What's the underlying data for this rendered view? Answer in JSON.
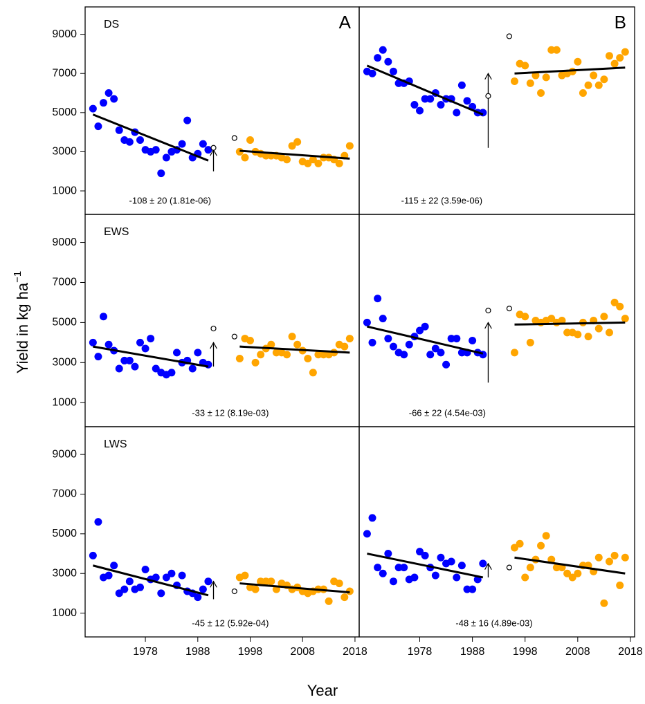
{
  "x_label": "Year",
  "y_label": "Yield in kg ha",
  "y_label_superscript": "−1",
  "chart_data": [
    {
      "type": "scatter",
      "title": "DS",
      "panel_label": "A",
      "annotation": "-108 ± 20 (1.81e-06)",
      "xlim": [
        1966.5,
        2018.8
      ],
      "ylim": [
        -200,
        10400
      ],
      "yticks": [
        1000,
        3000,
        5000,
        7000,
        9000
      ],
      "series": [
        {
          "color": "#0000ff",
          "x": [
            1968,
            1969,
            1970,
            1971,
            1972,
            1973,
            1974,
            1975,
            1976,
            1977,
            1978,
            1979,
            1980,
            1981,
            1982,
            1983,
            1984,
            1985,
            1986,
            1987,
            1988,
            1989,
            1990
          ],
          "values": [
            5200,
            4300,
            5500,
            6000,
            5700,
            4100,
            3600,
            3500,
            4000,
            3600,
            3100,
            3000,
            3100,
            1900,
            2700,
            3000,
            3100,
            3400,
            4600,
            2700,
            2900,
            3400,
            3100
          ]
        },
        {
          "color": "#ffa500",
          "x": [
            1996,
            1997,
            1998,
            1999,
            2000,
            2001,
            2002,
            2003,
            2004,
            2005,
            2006,
            2007,
            2008,
            2009,
            2010,
            2011,
            2012,
            2013,
            2014,
            2015,
            2016,
            2017
          ],
          "values": [
            3000,
            2700,
            3600,
            3000,
            2900,
            2800,
            2800,
            2800,
            2700,
            2600,
            3300,
            3500,
            2500,
            2400,
            2600,
            2400,
            2700,
            2700,
            2600,
            2400,
            2800,
            3300
          ]
        }
      ],
      "trend_lines": [
        {
          "x": [
            1968,
            1990
          ],
          "values": [
            4900,
            2550
          ]
        },
        {
          "x": [
            1996,
            2017
          ],
          "values": [
            3050,
            2650
          ]
        }
      ],
      "arrow": {
        "x": 1991,
        "values": [
          2000,
          3100
        ]
      },
      "open_points": {
        "x": [
          1991,
          1995
        ],
        "values": [
          3200,
          3700
        ]
      }
    },
    {
      "type": "scatter",
      "panel_label": "B",
      "annotation": "-115 ± 22 (3.59e-06)",
      "xlim": [
        1966.5,
        2018.8
      ],
      "ylim": [
        -200,
        10400
      ],
      "series": [
        {
          "color": "#0000ff",
          "x": [
            1968,
            1969,
            1970,
            1971,
            1972,
            1973,
            1974,
            1975,
            1976,
            1977,
            1978,
            1979,
            1980,
            1981,
            1982,
            1983,
            1984,
            1985,
            1986,
            1987,
            1988,
            1989,
            1990
          ],
          "values": [
            7100,
            7000,
            7800,
            8200,
            7600,
            7100,
            6500,
            6500,
            6600,
            5400,
            5100,
            5700,
            5700,
            6000,
            5400,
            5700,
            5700,
            5000,
            6400,
            5600,
            5300,
            5000,
            5000
          ]
        },
        {
          "color": "#ffa500",
          "x": [
            1996,
            1997,
            1998,
            1999,
            2000,
            2001,
            2002,
            2003,
            2004,
            2005,
            2006,
            2007,
            2008,
            2009,
            2010,
            2011,
            2012,
            2013,
            2014,
            2015,
            2016,
            2017
          ],
          "values": [
            6600,
            7500,
            7400,
            6500,
            6900,
            6000,
            6800,
            8200,
            8200,
            6900,
            7000,
            7100,
            7600,
            6000,
            6400,
            6900,
            6400,
            6700,
            7900,
            7500,
            7800,
            8100
          ]
        }
      ],
      "trend_lines": [
        {
          "x": [
            1968,
            1990
          ],
          "values": [
            7400,
            4900
          ]
        },
        {
          "x": [
            1996,
            2017
          ],
          "values": [
            7000,
            7300
          ]
        }
      ],
      "arrow": {
        "x": 1991,
        "values": [
          3200,
          7000
        ]
      },
      "open_points": {
        "x": [
          1991,
          1995
        ],
        "values": [
          5850,
          8900
        ]
      }
    },
    {
      "type": "scatter",
      "title": "EWS",
      "annotation": "-33 ± 12 (8.19e-03)",
      "xlim": [
        1966.5,
        2018.8
      ],
      "ylim": [
        -200,
        10400
      ],
      "yticks": [
        1000,
        3000,
        5000,
        7000,
        9000
      ],
      "series": [
        {
          "color": "#0000ff",
          "x": [
            1968,
            1969,
            1970,
            1971,
            1972,
            1973,
            1974,
            1975,
            1976,
            1977,
            1978,
            1979,
            1980,
            1981,
            1982,
            1983,
            1984,
            1985,
            1986,
            1987,
            1988,
            1989,
            1990
          ],
          "values": [
            4000,
            3300,
            5300,
            3900,
            3600,
            2700,
            3100,
            3100,
            2800,
            4000,
            3700,
            4200,
            2700,
            2500,
            2400,
            2500,
            3500,
            3000,
            3100,
            2700,
            3500,
            3000,
            2900
          ]
        },
        {
          "color": "#ffa500",
          "x": [
            1996,
            1997,
            1998,
            1999,
            2000,
            2001,
            2002,
            2003,
            2004,
            2005,
            2006,
            2007,
            2008,
            2009,
            2010,
            2011,
            2012,
            2013,
            2014,
            2015,
            2016,
            2017
          ],
          "values": [
            3200,
            4200,
            4100,
            3000,
            3400,
            3700,
            3900,
            3500,
            3500,
            3400,
            4300,
            3900,
            3600,
            3200,
            2500,
            3400,
            3400,
            3400,
            3500,
            3900,
            3800,
            4200
          ]
        }
      ],
      "trend_lines": [
        {
          "x": [
            1968,
            1990
          ],
          "values": [
            3800,
            2800
          ]
        },
        {
          "x": [
            1996,
            2017
          ],
          "values": [
            3800,
            3500
          ]
        }
      ],
      "arrow": {
        "x": 1991,
        "values": [
          2800,
          4000
        ]
      },
      "open_points": {
        "x": [
          1991,
          1995
        ],
        "values": [
          4700,
          4300
        ]
      }
    },
    {
      "type": "scatter",
      "annotation": "-66 ± 22 (4.54e-03)",
      "xlim": [
        1966.5,
        2018.8
      ],
      "ylim": [
        -200,
        10400
      ],
      "series": [
        {
          "color": "#0000ff",
          "x": [
            1968,
            1969,
            1970,
            1971,
            1972,
            1973,
            1974,
            1975,
            1976,
            1977,
            1978,
            1979,
            1980,
            1981,
            1982,
            1983,
            1984,
            1985,
            1986,
            1987,
            1988,
            1989,
            1990
          ],
          "values": [
            5000,
            4000,
            6200,
            5200,
            4200,
            3800,
            3500,
            3400,
            3900,
            4300,
            4600,
            4800,
            3400,
            3700,
            3500,
            2900,
            4200,
            4200,
            3500,
            3500,
            4100,
            3500,
            3400
          ]
        },
        {
          "color": "#ffa500",
          "x": [
            1996,
            1997,
            1998,
            1999,
            2000,
            2001,
            2002,
            2003,
            2004,
            2005,
            2006,
            2007,
            2008,
            2009,
            2010,
            2011,
            2012,
            2013,
            2014,
            2015,
            2016,
            2017
          ],
          "values": [
            3500,
            5400,
            5300,
            4000,
            5100,
            5000,
            5100,
            5200,
            5000,
            5100,
            4500,
            4500,
            4400,
            5000,
            4300,
            5100,
            4700,
            5300,
            4500,
            6000,
            5800,
            5200
          ]
        }
      ],
      "trend_lines": [
        {
          "x": [
            1968,
            1990
          ],
          "values": [
            4800,
            3450
          ]
        },
        {
          "x": [
            1996,
            2017
          ],
          "values": [
            4900,
            5000
          ]
        }
      ],
      "arrow": {
        "x": 1991,
        "values": [
          2000,
          5000
        ]
      },
      "open_points": {
        "x": [
          1991,
          1995
        ],
        "values": [
          5600,
          5700
        ]
      }
    },
    {
      "type": "scatter",
      "title": "LWS",
      "annotation": "-45 ± 12 (5.92e-04)",
      "xlim": [
        1966.5,
        2018.8
      ],
      "ylim": [
        -200,
        10400
      ],
      "yticks": [
        1000,
        3000,
        5000,
        7000,
        9000
      ],
      "xticks": [
        1978,
        1988,
        1998,
        2008,
        2018
      ],
      "series": [
        {
          "color": "#0000ff",
          "x": [
            1968,
            1969,
            1970,
            1971,
            1972,
            1973,
            1974,
            1975,
            1976,
            1977,
            1978,
            1979,
            1980,
            1981,
            1982,
            1983,
            1984,
            1985,
            1986,
            1987,
            1988,
            1989,
            1990
          ],
          "values": [
            3900,
            5600,
            2800,
            2900,
            3400,
            2000,
            2200,
            2600,
            2200,
            2300,
            3200,
            2700,
            2800,
            2000,
            2800,
            3000,
            2400,
            2900,
            2100,
            2000,
            1800,
            2200,
            2600
          ]
        },
        {
          "color": "#ffa500",
          "x": [
            1996,
            1997,
            1998,
            1999,
            2000,
            2001,
            2002,
            2003,
            2004,
            2005,
            2006,
            2007,
            2008,
            2009,
            2010,
            2011,
            2012,
            2013,
            2014,
            2015,
            2016,
            2017
          ],
          "values": [
            2800,
            2900,
            2300,
            2200,
            2600,
            2600,
            2600,
            2200,
            2500,
            2400,
            2200,
            2300,
            2100,
            2000,
            2100,
            2200,
            2200,
            1600,
            2600,
            2500,
            1800,
            2100
          ]
        }
      ],
      "trend_lines": [
        {
          "x": [
            1968,
            1990
          ],
          "values": [
            3400,
            1900
          ]
        },
        {
          "x": [
            1996,
            2017
          ],
          "values": [
            2500,
            2050
          ]
        }
      ],
      "arrow": {
        "x": 1991,
        "values": [
          1700,
          2600
        ]
      },
      "open_points": {
        "x": [
          1995
        ],
        "values": [
          2100
        ]
      }
    },
    {
      "type": "scatter",
      "annotation": "-48 ± 16 (4.89e-03)",
      "xlim": [
        1966.5,
        2018.8
      ],
      "ylim": [
        -200,
        10400
      ],
      "xticks": [
        1978,
        1988,
        1998,
        2008,
        2018
      ],
      "series": [
        {
          "color": "#0000ff",
          "x": [
            1968,
            1969,
            1970,
            1971,
            1972,
            1973,
            1974,
            1975,
            1976,
            1977,
            1978,
            1979,
            1980,
            1981,
            1982,
            1983,
            1984,
            1985,
            1986,
            1987,
            1988,
            1989,
            1990
          ],
          "values": [
            5000,
            5800,
            3300,
            3000,
            4000,
            2600,
            3300,
            3300,
            2700,
            2800,
            4100,
            3900,
            3300,
            2900,
            3800,
            3500,
            3600,
            2800,
            3400,
            2200,
            2200,
            2700,
            3500
          ]
        },
        {
          "color": "#ffa500",
          "x": [
            1996,
            1997,
            1998,
            1999,
            2000,
            2001,
            2002,
            2003,
            2004,
            2005,
            2006,
            2007,
            2008,
            2009,
            2010,
            2011,
            2012,
            2013,
            2014,
            2015,
            2016,
            2017
          ],
          "values": [
            4300,
            4500,
            2800,
            3300,
            3700,
            4400,
            4900,
            3700,
            3300,
            3300,
            3000,
            2800,
            3000,
            3400,
            3400,
            3100,
            3800,
            1500,
            3600,
            3900,
            2400,
            3800
          ]
        }
      ],
      "trend_lines": [
        {
          "x": [
            1968,
            1990
          ],
          "values": [
            4000,
            2800
          ]
        },
        {
          "x": [
            1996,
            2017
          ],
          "values": [
            3800,
            3000
          ]
        }
      ],
      "arrow": {
        "x": 1991,
        "values": [
          2800,
          3500
        ]
      },
      "open_points": {
        "x": [
          1995
        ],
        "values": [
          3300
        ]
      }
    }
  ]
}
